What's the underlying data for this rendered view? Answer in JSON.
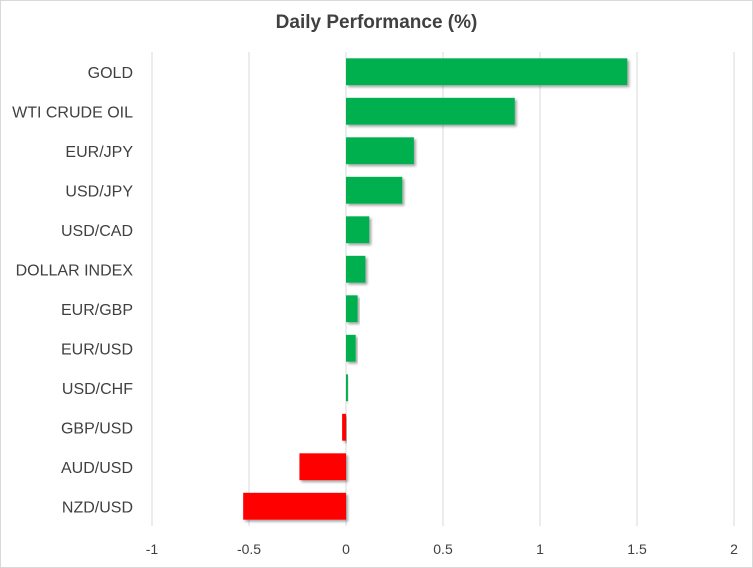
{
  "chart_data": {
    "type": "bar",
    "orientation": "horizontal",
    "title": "Daily Performance  (%)",
    "xlabel": "",
    "ylabel": "",
    "categories": [
      "GOLD",
      "WTI CRUDE OIL",
      "EUR/JPY",
      "USD/JPY",
      "USD/CAD",
      "DOLLAR INDEX",
      "EUR/GBP",
      "EUR/USD",
      "USD/CHF",
      "GBP/USD",
      "AUD/USD",
      "NZD/USD"
    ],
    "values": [
      1.45,
      0.87,
      0.35,
      0.29,
      0.12,
      0.1,
      0.06,
      0.05,
      0.01,
      -0.02,
      -0.24,
      -0.53
    ],
    "xlim": [
      -1,
      2
    ],
    "xticks": [
      -1,
      -0.5,
      0,
      0.5,
      1,
      1.5,
      2
    ],
    "xtick_labels": [
      "-1",
      "-0.5",
      "0",
      "0.5",
      "1",
      "1.5",
      "2"
    ],
    "grid": "vertical",
    "legend": "none",
    "colors": {
      "positive": "#00b050",
      "negative": "#ff0000",
      "grid": "#d9d9d9",
      "text": "#404040"
    }
  }
}
